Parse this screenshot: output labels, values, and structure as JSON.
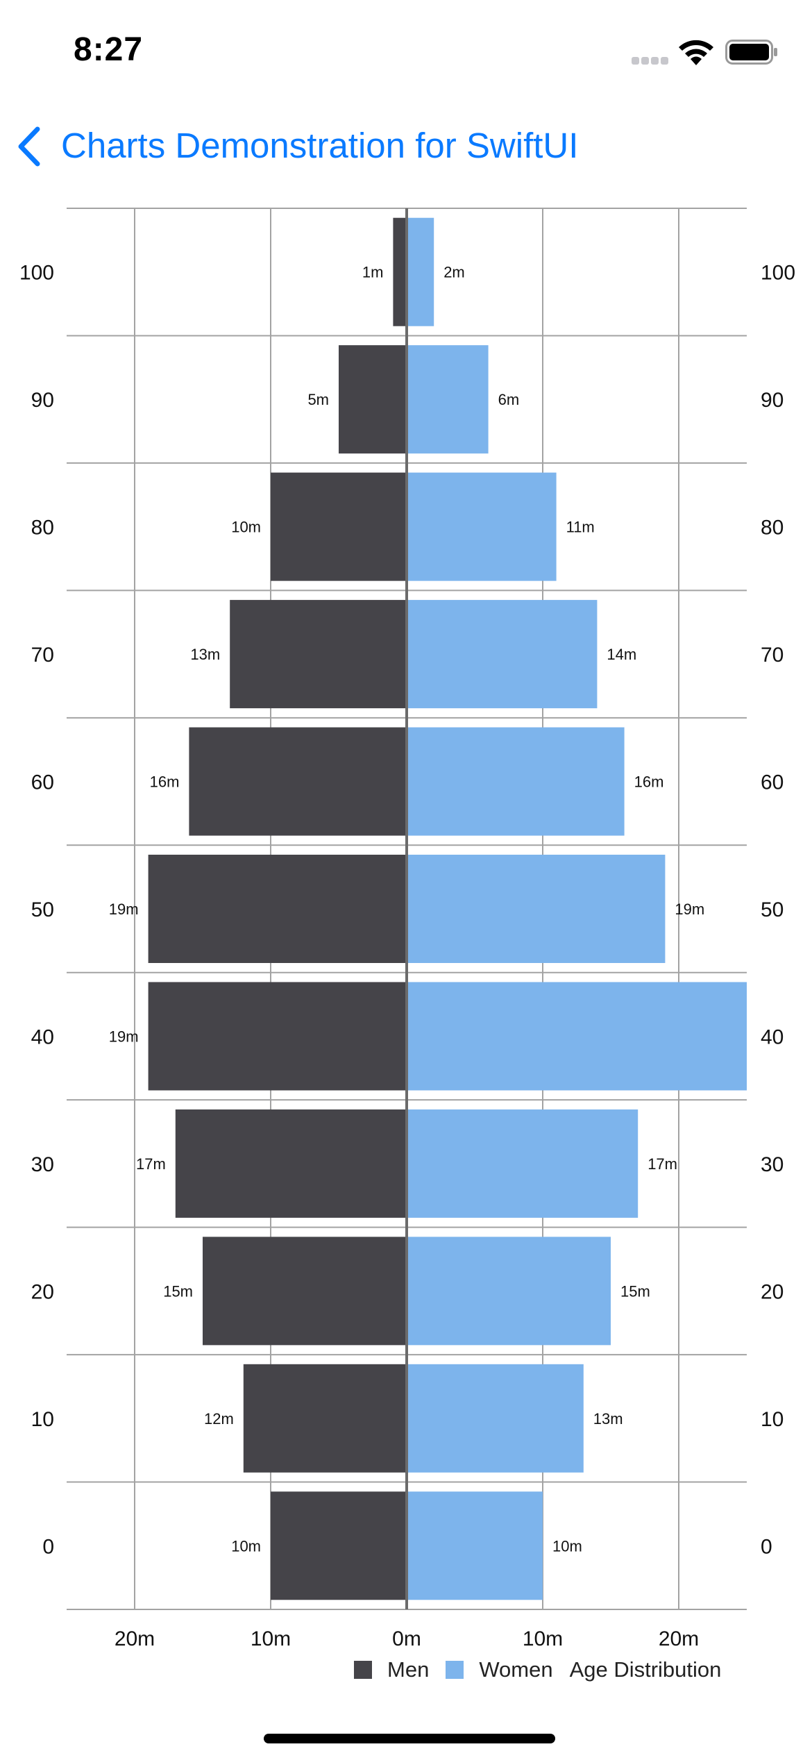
{
  "status_bar": {
    "time": "8:27"
  },
  "nav": {
    "back_label": "Charts Demonstration for SwiftUI"
  },
  "colors": {
    "men": "#454449",
    "women": "#7db4ec",
    "accent": "#0a7aff",
    "grid": "#a3a3a3"
  },
  "chart_data": {
    "type": "bar",
    "orientation": "horizontal-diverging",
    "categories": [
      "100",
      "90",
      "80",
      "70",
      "60",
      "50",
      "40",
      "30",
      "20",
      "10",
      "0"
    ],
    "series": [
      {
        "name": "Men",
        "values": [
          1,
          5,
          10,
          13,
          16,
          19,
          19,
          17,
          15,
          12,
          10
        ],
        "labels": [
          "1m",
          "5m",
          "10m",
          "13m",
          "16m",
          "19m",
          "19m",
          "17m",
          "15m",
          "12m",
          "10m"
        ]
      },
      {
        "name": "Women",
        "values": [
          2,
          6,
          11,
          14,
          16,
          19,
          25,
          17,
          15,
          13,
          10
        ],
        "labels": [
          "2m",
          "6m",
          "11m",
          "14m",
          "16m",
          "19m",
          "",
          "17m",
          "15m",
          "13m",
          "10m"
        ]
      }
    ],
    "xlim": [
      -25,
      25
    ],
    "xticks": [
      -20,
      -10,
      0,
      10,
      20
    ],
    "xtick_labels": [
      "20m",
      "10m",
      "0m",
      "10m",
      "20m"
    ],
    "legend": [
      "Men",
      "Women"
    ],
    "legend_title": "Age Distribution",
    "legend_position": "bottom-right",
    "grid": true
  }
}
